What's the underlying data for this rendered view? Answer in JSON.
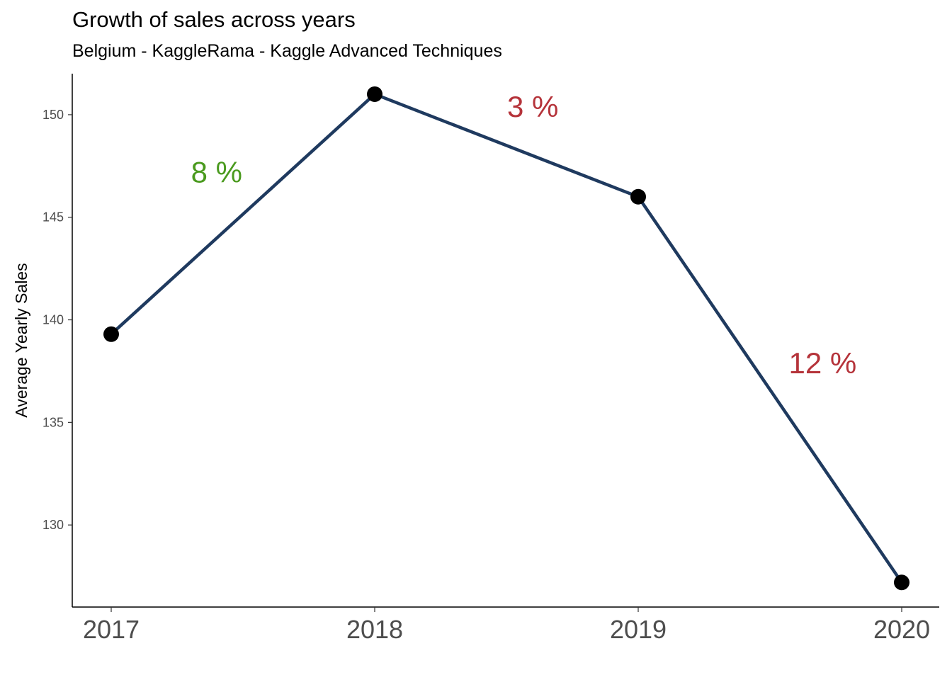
{
  "chart_data": {
    "type": "line",
    "title": "Growth of sales across years",
    "subtitle": "Belgium - KaggleRama - Kaggle Advanced Techniques",
    "xlabel": "",
    "ylabel": "Average Yearly Sales",
    "x": [
      "2017",
      "2018",
      "2019",
      "2020"
    ],
    "series": [
      {
        "values": [
          139.3,
          151.0,
          146.0,
          127.2
        ]
      }
    ],
    "ylim": [
      126,
      152
    ],
    "yticks": [
      130,
      135,
      140,
      145,
      150
    ],
    "grid": false,
    "line_color": "#1f3a5f",
    "point_color": "#000000",
    "annotations": [
      {
        "text": "8 %",
        "x": 2017.4,
        "y": 146.7,
        "color": "#4a9a1e"
      },
      {
        "text": "3 %",
        "x": 2018.6,
        "y": 149.9,
        "color": "#b5333a"
      },
      {
        "text": "12 %",
        "x": 2019.7,
        "y": 137.4,
        "color": "#b5333a"
      }
    ]
  }
}
